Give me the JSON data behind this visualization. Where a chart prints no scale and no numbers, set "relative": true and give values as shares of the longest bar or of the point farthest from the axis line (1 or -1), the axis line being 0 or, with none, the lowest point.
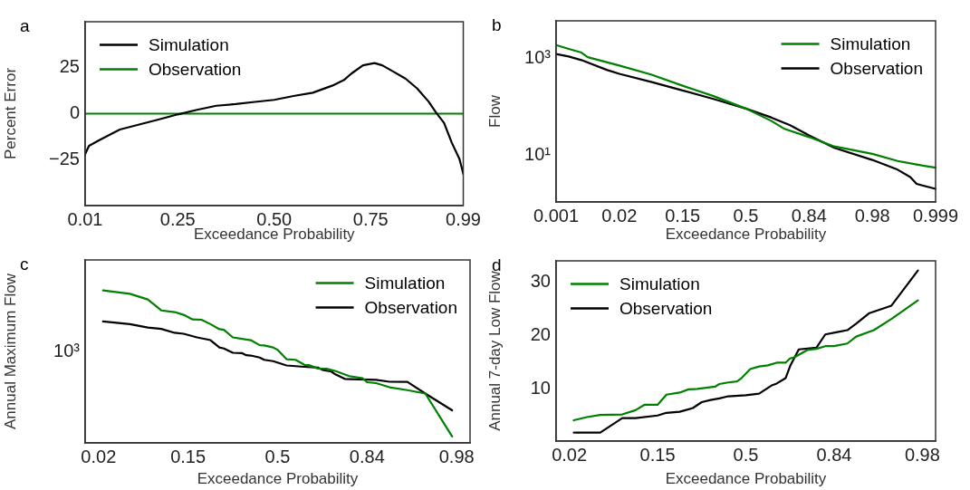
{
  "chart_data": [
    {
      "type": "line",
      "title": "a",
      "xlabel": "Exceedance Probability",
      "ylabel": "Percent Error",
      "xlim": [
        0.01,
        0.99
      ],
      "ylim": [
        -50,
        50
      ],
      "xticks": [
        0.01,
        0.25,
        {
          "value": 0.5,
          "label": "0.50"
        },
        0.75,
        0.99
      ],
      "yticks": [
        {
          "value": -25,
          "label": "−25"
        },
        0,
        25
      ],
      "legend": "top left",
      "series": [
        {
          "name": "Simulation",
          "color": "#000000",
          "x": [
            0.01,
            0.02,
            0.05,
            0.1,
            0.15,
            0.2,
            0.25,
            0.3,
            0.35,
            0.4,
            0.45,
            0.5,
            0.55,
            0.6,
            0.65,
            0.68,
            0.7,
            0.73,
            0.76,
            0.78,
            0.81,
            0.84,
            0.87,
            0.9,
            0.92,
            0.94,
            0.96,
            0.98,
            0.99
          ],
          "values": [
            -22,
            -17.5,
            -14,
            -8.6,
            -5.9,
            -3.2,
            -0.4,
            2.1,
            4.3,
            5.2,
            6.4,
            7.5,
            9.6,
            11.4,
            15.2,
            18.2,
            21.8,
            26.3,
            27.5,
            26.3,
            22.7,
            19.1,
            13.8,
            6.6,
            0.4,
            -5,
            -15.7,
            -24.6,
            -32.7
          ]
        },
        {
          "name": "Observation",
          "color": "#008000",
          "x": [
            0.01,
            0.99
          ],
          "values": [
            0,
            0
          ]
        }
      ]
    },
    {
      "type": "line",
      "title": "b",
      "xlabel": "Exceedance Probability",
      "ylabel": "Flow",
      "log": "y",
      "ylim": [
        1.1,
        6000
      ],
      "categories": [
        "0.001",
        null,
        null,
        null,
        null,
        null,
        null,
        null,
        null,
        null,
        "0.02",
        null,
        null,
        null,
        null,
        null,
        null,
        null,
        null,
        null,
        "0.15",
        null,
        null,
        null,
        null,
        null,
        null,
        null,
        null,
        null,
        "0.5",
        null,
        null,
        null,
        null,
        null,
        null,
        null,
        null,
        null,
        "0.84",
        null,
        null,
        null,
        null,
        null,
        null,
        null,
        null,
        null,
        "0.98",
        null,
        null,
        null,
        null,
        null,
        null,
        null,
        null,
        null,
        "0.999"
      ],
      "yticks": [
        {
          "value": 10,
          "label": "10¹"
        },
        {
          "value": 1000,
          "label": "10³"
        }
      ],
      "legend": "top right",
      "series": [
        {
          "name": "Simulation",
          "color": "#008000",
          "values": [
            1900,
            null,
            1580,
            null,
            1330,
            1070,
            null,
            null,
            null,
            null,
            718,
            null,
            null,
            null,
            null,
            468,
            null,
            null,
            null,
            null,
            275,
            null,
            null,
            null,
            null,
            166,
            null,
            null,
            null,
            null,
            93,
            null,
            null,
            null,
            52,
            null,
            36,
            null,
            null,
            null,
            24,
            null,
            null,
            null,
            15.4,
            null,
            null,
            null,
            null,
            null,
            10.8,
            null,
            null,
            null,
            7.7,
            null,
            null,
            6.5,
            null,
            null,
            5.6
          ]
        },
        {
          "name": "Observation",
          "color": "#000000",
          "values": [
            1240,
            null,
            1100,
            null,
            930,
            null,
            null,
            null,
            585,
            null,
            485,
            null,
            null,
            null,
            null,
            330,
            null,
            null,
            null,
            null,
            220,
            null,
            null,
            null,
            null,
            145,
            null,
            null,
            null,
            null,
            93,
            null,
            null,
            null,
            61,
            null,
            null,
            42,
            null,
            null,
            26,
            null,
            null,
            null,
            14.4,
            null,
            null,
            null,
            null,
            null,
            8.1,
            null,
            null,
            null,
            5.1,
            null,
            3.6,
            2.6,
            null,
            null,
            2.05
          ]
        }
      ]
    },
    {
      "type": "line",
      "title": "c",
      "xlabel": "Exceedance Probability",
      "ylabel": "Annual Maximum Flow",
      "relative": true,
      "categories": [
        null,
        null,
        null,
        "0.02",
        null,
        null,
        null,
        null,
        null,
        null,
        null,
        null,
        null,
        null,
        null,
        null,
        null,
        null,
        null,
        null,
        null,
        null,
        null,
        "0.15",
        null,
        null,
        null,
        null,
        null,
        null,
        null,
        null,
        null,
        null,
        null,
        null,
        null,
        null,
        null,
        null,
        null,
        null,
        null,
        "0.5",
        null,
        null,
        null,
        null,
        null,
        null,
        null,
        null,
        null,
        null,
        null,
        null,
        null,
        null,
        null,
        null,
        null,
        null,
        null,
        "0.84",
        null,
        null,
        null,
        null,
        null,
        null,
        null,
        null,
        null,
        null,
        null,
        null,
        null,
        null,
        null,
        null,
        null,
        null,
        null,
        "0.98",
        null,
        null,
        null
      ],
      "legend": "top right",
      "annotations": [
        "10³"
      ],
      "series": [
        {
          "name": "Simulation",
          "color": "#008000",
          "values": [
            null,
            null,
            null,
            null,
            1,
            null,
            null,
            null,
            null,
            null,
            0.978,
            null,
            null,
            null,
            0.941,
            null,
            null,
            0.869,
            null,
            null,
            0.858,
            null,
            0.84,
            null,
            0.81,
            null,
            0.808,
            null,
            0.779,
            null,
            0.746,
            0.742,
            null,
            0.692,
            null,
            null,
            0.678,
            0.674,
            null,
            0.641,
            0.639,
            null,
            0.626,
            0.611,
            null,
            0.549,
            null,
            0.545,
            null,
            0.512,
            0.51,
            null,
            0.488,
            null,
            0.486,
            null,
            0.471,
            null,
            null,
            0.438,
            null,
            null,
            0.424,
            0.398,
            null,
            0.392,
            null,
            null,
            0.365,
            null,
            null,
            null,
            0.346,
            null,
            null,
            null,
            0.324,
            null,
            null,
            null,
            null,
            null,
            0.042,
            null,
            null,
            null,
            null
          ]
        },
        {
          "name": "Observation",
          "color": "#000000",
          "values": [
            null,
            null,
            null,
            null,
            0.797,
            null,
            null,
            null,
            null,
            null,
            0.779,
            null,
            null,
            null,
            0.757,
            null,
            null,
            0.748,
            null,
            null,
            0.722,
            null,
            0.716,
            null,
            null,
            0.692,
            null,
            null,
            0.674,
            null,
            0.626,
            0.619,
            null,
            0.591,
            null,
            0.589,
            0.575,
            0.573,
            null,
            0.56,
            0.545,
            null,
            0.536,
            null,
            null,
            0.508,
            null,
            null,
            null,
            0.499,
            null,
            null,
            0.494,
            0.479,
            null,
            0.468,
            0.448,
            null,
            0.42,
            null,
            null,
            0.416,
            null,
            null,
            null,
            0.414,
            null,
            null,
            0.401,
            null,
            null,
            null,
            0.4,
            null,
            null,
            null,
            0.324,
            null,
            null,
            null,
            null,
            null,
            0.214,
            null,
            null,
            null,
            null
          ]
        }
      ]
    },
    {
      "type": "line",
      "title": "d",
      "xlabel": "Exceedance Probability",
      "ylabel": "Annual 7-day Low Flow",
      "ylim": [
        0.2,
        34
      ],
      "categories": [
        null,
        null,
        null,
        "0.02",
        null,
        null,
        null,
        null,
        null,
        null,
        null,
        null,
        null,
        null,
        null,
        null,
        null,
        null,
        null,
        null,
        null,
        null,
        null,
        "0.15",
        null,
        null,
        null,
        null,
        null,
        null,
        null,
        null,
        null,
        null,
        null,
        null,
        null,
        null,
        null,
        null,
        null,
        null,
        null,
        "0.5",
        null,
        null,
        null,
        null,
        null,
        null,
        null,
        null,
        null,
        null,
        null,
        null,
        null,
        null,
        null,
        null,
        null,
        null,
        null,
        "0.84",
        null,
        null,
        null,
        null,
        null,
        null,
        null,
        null,
        null,
        null,
        null,
        null,
        null,
        null,
        null,
        null,
        null,
        null,
        null,
        "0.98",
        null,
        null,
        null
      ],
      "yticks": [
        10,
        20,
        30
      ],
      "legend": "top left",
      "series": [
        {
          "name": "Simulation",
          "color": "#008000",
          "values": [
            null,
            null,
            null,
            null,
            4.1,
            null,
            null,
            4.7,
            null,
            null,
            5.1,
            null,
            null,
            null,
            null,
            5.2,
            null,
            null,
            6,
            null,
            7,
            null,
            null,
            7,
            null,
            8.9,
            null,
            null,
            9.3,
            null,
            9.9,
            null,
            10,
            null,
            10.2,
            null,
            10.4,
            10.9,
            null,
            11.2,
            null,
            11.4,
            12,
            null,
            13.7,
            null,
            14.2,
            null,
            14.4,
            null,
            14.9,
            null,
            14.9,
            15.7,
            15.9,
            null,
            null,
            17.3,
            null,
            17.5,
            null,
            18,
            null,
            18,
            null,
            null,
            18.5,
            null,
            19.8,
            null,
            null,
            null,
            21,
            null,
            null,
            null,
            23.1,
            null,
            null,
            null,
            null,
            null,
            26.6,
            null,
            null,
            null,
            null
          ]
        },
        {
          "name": "Observation",
          "color": "#000000",
          "values": [
            null,
            null,
            null,
            null,
            1.8,
            null,
            null,
            null,
            null,
            null,
            1.8,
            null,
            null,
            null,
            null,
            4.5,
            null,
            null,
            4.5,
            null,
            null,
            null,
            null,
            5,
            null,
            5.5,
            null,
            null,
            5.7,
            null,
            null,
            6.4,
            null,
            7.5,
            null,
            7.9,
            null,
            8.2,
            null,
            8.6,
            null,
            null,
            null,
            8.8,
            null,
            null,
            9.1,
            null,
            null,
            10.7,
            11,
            null,
            12,
            14.2,
            null,
            17.4,
            null,
            null,
            null,
            17.7,
            null,
            20.2,
            null,
            null,
            20.7,
            null,
            21,
            null,
            22.2,
            null,
            null,
            24.2,
            null,
            null,
            null,
            null,
            25.6,
            null,
            null,
            null,
            null,
            null,
            32.2,
            null,
            null,
            null,
            null
          ]
        }
      ]
    }
  ]
}
